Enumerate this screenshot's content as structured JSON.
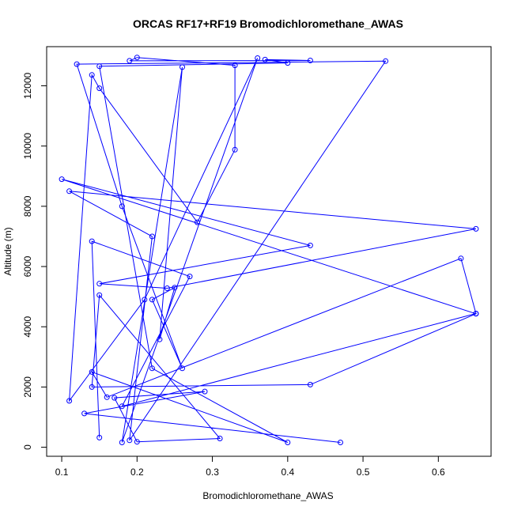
{
  "chart_data": {
    "type": "line",
    "title": "ORCAS RF17+RF19 Bromodichloromethane_AWAS",
    "xlabel": "Bromodichloromethane_AWAS",
    "ylabel": "Altitude (m)",
    "xlim": [
      0.08,
      0.67
    ],
    "ylim": [
      -300,
      13300
    ],
    "xticks": [
      "0.1",
      "0.2",
      "0.3",
      "0.4",
      "0.5",
      "0.6"
    ],
    "yticks": [
      "0",
      "2000",
      "4000",
      "6000",
      "8000",
      "10000",
      "12000"
    ],
    "grid": false,
    "line_color": "#0000ff",
    "marker": "open-circle",
    "series": [
      {
        "x": [
          0.47,
          0.13,
          0.29,
          0.17,
          0.2,
          0.31,
          0.15,
          0.14,
          0.43,
          0.65,
          0.1,
          0.43,
          0.15,
          0.24,
          0.65,
          0.11,
          0.22,
          0.19,
          0.53,
          0.12,
          0.18,
          0.26,
          0.22,
          0.25,
          0.23,
          0.26,
          0.18,
          0.36,
          0.21,
          0.11,
          0.14,
          0.15,
          0.28,
          0.33,
          0.33,
          0.2,
          0.19,
          0.43,
          0.37,
          0.4,
          0.15,
          0.22,
          0.4,
          0.14,
          0.16,
          0.63,
          0.65,
          0.18,
          0.27,
          0.14,
          0.15
        ],
        "y": [
          160,
          1120,
          1850,
          1640,
          180,
          290,
          5050,
          2000,
          2080,
          4430,
          8900,
          6700,
          5430,
          5280,
          7250,
          8500,
          7000,
          230,
          12820,
          12720,
          8000,
          2620,
          4900,
          5300,
          3580,
          12620,
          160,
          12920,
          4900,
          1540,
          12360,
          11920,
          7470,
          9880,
          12680,
          12940,
          12830,
          12840,
          12870,
          12760,
          12650,
          2620,
          160,
          2500,
          1660,
          6270,
          4440,
          1360,
          5670,
          6840,
          320
        ]
      }
    ]
  }
}
